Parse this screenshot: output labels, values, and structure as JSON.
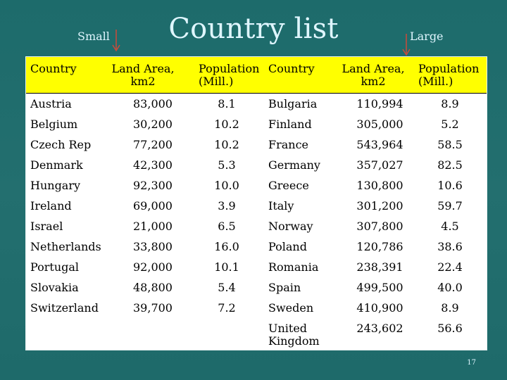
{
  "slide": {
    "title": "Country list",
    "small_label": "Small",
    "large_label": "Large",
    "page_number": "17"
  },
  "table": {
    "headers": [
      "Country",
      "Land Area,\nkm2",
      "Population\n(Mill.)",
      "Country",
      "Land Area,\nkm2",
      "Population\n(Mill.)"
    ],
    "rows": [
      [
        "Austria",
        "83,000",
        "8.1",
        "Bulgaria",
        "110,994",
        "8.9"
      ],
      [
        "Belgium",
        "30,200",
        "10.2",
        "Finland",
        "305,000",
        "5.2"
      ],
      [
        "Czech Rep",
        "77,200",
        "10.2",
        "France",
        "543,964",
        "58.5"
      ],
      [
        "Denmark",
        "42,300",
        "5.3",
        "Germany",
        "357,027",
        "82.5"
      ],
      [
        "Hungary",
        "92,300",
        "10.0",
        "Greece",
        "130,800",
        "10.6"
      ],
      [
        "Ireland",
        "69,000",
        "3.9",
        "Italy",
        "301,200",
        "59.7"
      ],
      [
        "Israel",
        "21,000",
        "6.5",
        "Norway",
        "307,800",
        "4.5"
      ],
      [
        "Netherlands",
        "33,800",
        "16.0",
        "Poland",
        "120,786",
        "38.6"
      ],
      [
        "Portugal",
        "92,000",
        "10.1",
        "Romania",
        "238,391",
        "22.4"
      ],
      [
        "Slovakia",
        "48,800",
        "5.4",
        "Spain",
        "499,500",
        "40.0"
      ],
      [
        "Switzerland",
        "39,700",
        "7.2",
        "Sweden",
        "410,900",
        "8.9"
      ],
      [
        "",
        "",
        "",
        "United\nKingdom",
        "243,602",
        "56.6"
      ]
    ]
  },
  "colors": {
    "background": "#1f6f6f",
    "header": "#ffff00",
    "arrow": "#cc4a3a",
    "title": "#dff6ff"
  },
  "icons": {
    "small_arrow": "down-arrow-icon",
    "large_arrow": "down-arrow-icon"
  }
}
